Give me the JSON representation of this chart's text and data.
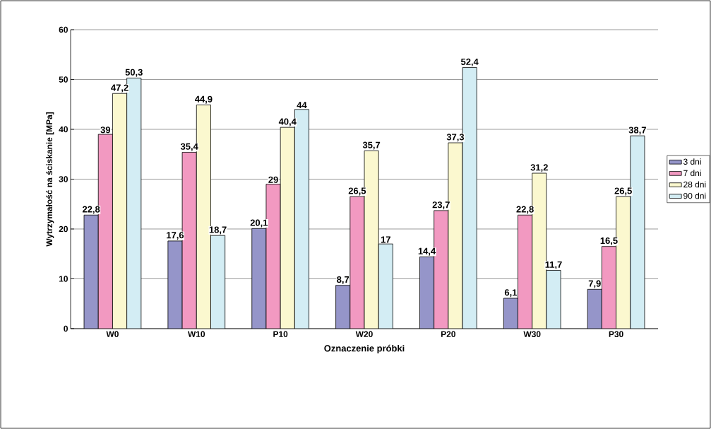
{
  "chart_data": {
    "type": "bar",
    "xlabel": "Oznaczenie próbki",
    "ylabel": "Wytrzymałość na ściskanie [MPa]",
    "categories": [
      "W0",
      "W10",
      "P10",
      "W20",
      "P20",
      "W30",
      "P30"
    ],
    "series": [
      {
        "name": "3 dni",
        "color": "#9595c9",
        "values": [
          22.8,
          17.6,
          20.1,
          8.7,
          14.4,
          6.1,
          7.9
        ],
        "value_labels": [
          "22,8",
          "17,6",
          "20,1",
          "8,7",
          "14,4",
          "6,1",
          "7,9"
        ]
      },
      {
        "name": "7 dni",
        "color": "#f299c1",
        "values": [
          39,
          35.4,
          29,
          26.5,
          23.7,
          22.8,
          16.5
        ],
        "value_labels": [
          "39",
          "35,4",
          "29",
          "26,5",
          "23,7",
          "22,8",
          "16,5"
        ]
      },
      {
        "name": "28 dni",
        "color": "#fbf8cf",
        "values": [
          47.2,
          44.9,
          40.4,
          35.7,
          37.3,
          31.2,
          26.5
        ],
        "value_labels": [
          "47,2",
          "44,9",
          "40,4",
          "35,7",
          "37,3",
          "31,2",
          "26,5"
        ]
      },
      {
        "name": "90 dni",
        "color": "#d3edf4",
        "values": [
          50.3,
          18.7,
          44,
          17,
          52.4,
          11.7,
          38.7
        ],
        "value_labels": [
          "50,3",
          "18,7",
          "44",
          "17",
          "52,4",
          "11,7",
          "38,7"
        ]
      }
    ],
    "ylim": [
      0,
      60
    ],
    "yticks": [
      0,
      10,
      20,
      30,
      40,
      50,
      60
    ],
    "grid": "y",
    "legend": "right"
  }
}
